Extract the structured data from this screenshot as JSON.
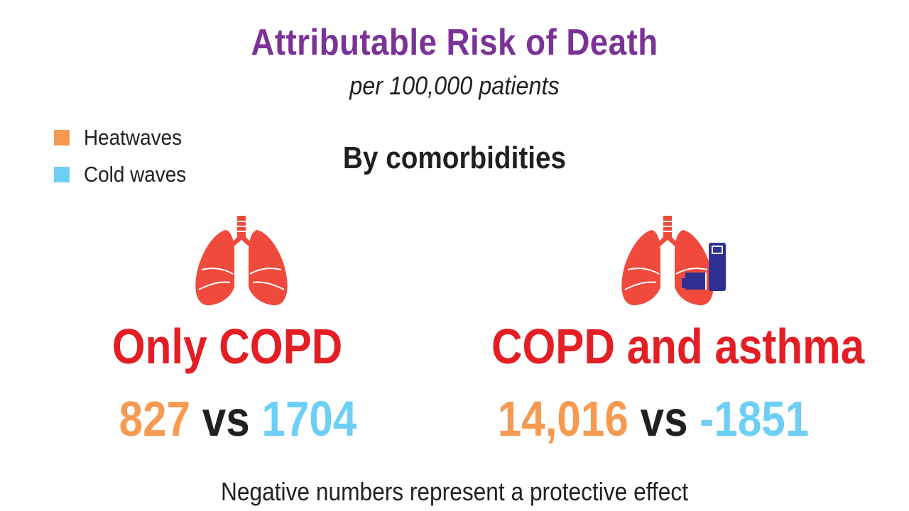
{
  "header": {
    "title": "Attributable Risk of Death",
    "subtitle": "per 100,000 patients"
  },
  "legend": {
    "items": [
      {
        "label": "Heatwaves",
        "color": "#f79a51"
      },
      {
        "label": "Cold waves",
        "color": "#6dcff6"
      }
    ]
  },
  "section": {
    "heading": "By comorbidities"
  },
  "groups": [
    {
      "label": "Only COPD",
      "icon": "lungs-icon",
      "heat_value": "827",
      "separator": "vs",
      "cold_value": "1704"
    },
    {
      "label": "COPD and asthma",
      "icon": "lungs-with-inhaler-icon",
      "heat_value": "14,016",
      "separator": "vs",
      "cold_value": "-1851"
    }
  ],
  "colors": {
    "title": "#7b3296",
    "group_label": "#e31e24",
    "heatwaves": "#f79a51",
    "cold_waves": "#6dcff6",
    "lung": "#ef4a3c",
    "inhaler": "#2e3192"
  },
  "footnote": "Negative numbers represent a protective effect"
}
